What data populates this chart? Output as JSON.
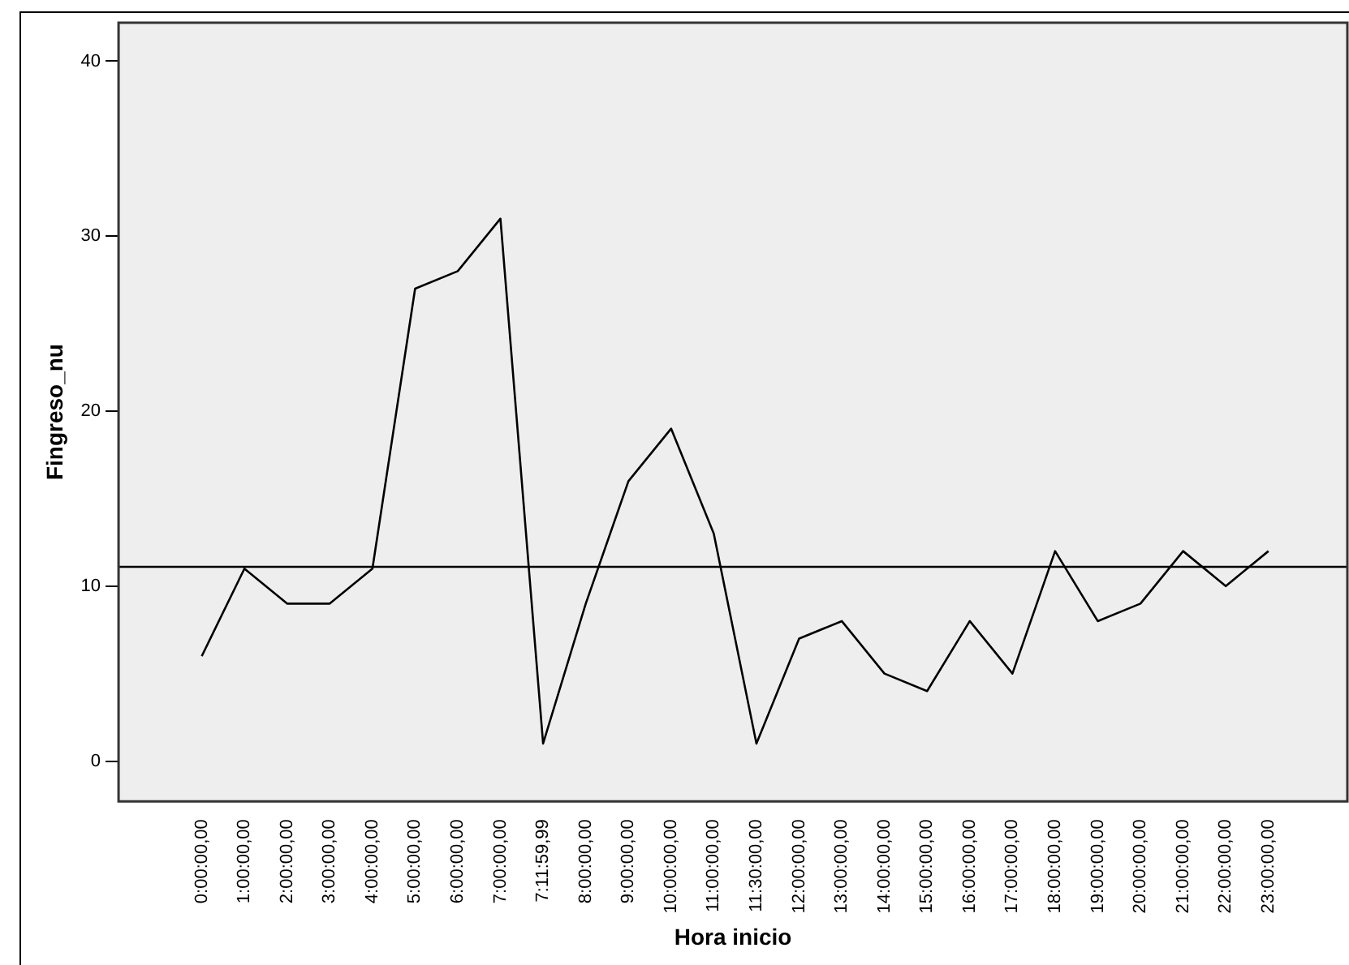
{
  "chart_data": {
    "type": "line",
    "xlabel": "Hora inicio",
    "ylabel": "Fingreso_nu",
    "categories": [
      "0:00:00,00",
      "1:00:00,00",
      "2:00:00,00",
      "3:00:00,00",
      "4:00:00,00",
      "5:00:00,00",
      "6:00:00,00",
      "7:00:00,00",
      "7:11:59,99",
      "8:00:00,00",
      "9:00:00,00",
      "10:00:00,00",
      "11:00:00,00",
      "11:30:00,00",
      "12:00:00,00",
      "13:00:00,00",
      "14:00:00,00",
      "15:00:00,00",
      "16:00:00,00",
      "17:00:00,00",
      "18:00:00,00",
      "19:00:00,00",
      "20:00:00,00",
      "21:00:00,00",
      "22:00:00,00",
      "23:00:00,00"
    ],
    "values": [
      6,
      11,
      9,
      9,
      11,
      27,
      28,
      31,
      1,
      9,
      16,
      19,
      13,
      1,
      7,
      8,
      5,
      4,
      8,
      5,
      12,
      8,
      9,
      12,
      10,
      12
    ],
    "color": "#000000",
    "ylim": [
      -2.3,
      42.2
    ],
    "yticks": [
      0,
      10,
      20,
      30,
      40
    ],
    "grid": false,
    "legend": false,
    "marker": "none",
    "ref_lines": [
      {
        "axis": "y",
        "value": 11.1,
        "color": "#000000"
      }
    ]
  }
}
